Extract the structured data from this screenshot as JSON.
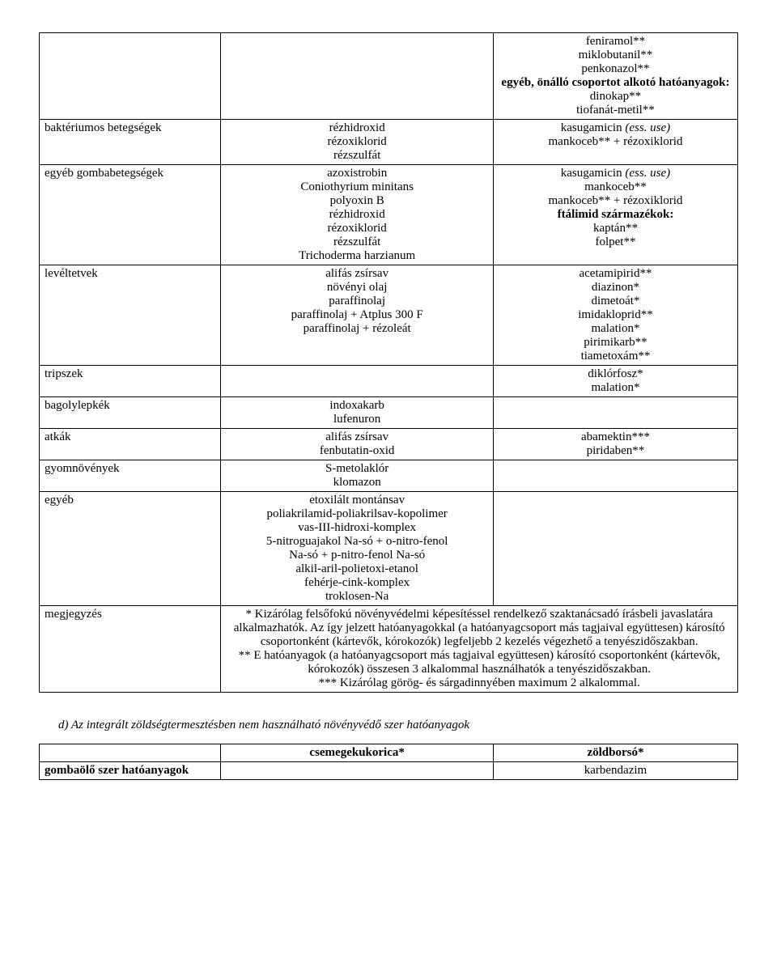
{
  "table1": {
    "rows": [
      {
        "col1": "",
        "col2": "",
        "col3": "feniramol**\nmiklobutanil**\npenkonazol**\n<b>egyéb, önálló csoportot alkotó hatóanyagok:</b>\ndinokap**\ntiofanát-metil**"
      },
      {
        "col1": "baktériumos betegségek",
        "col2": "rézhidroxid\nrézoxiklorid\nrézszulfát",
        "col3": "kasugamicin <i>(ess. use)</i>\nmankoceb** + rézoxiklorid"
      },
      {
        "col1": "egyéb gombabetegségek",
        "col2": "azoxistrobin\nConiothyrium minitans\npolyoxin B\nrézhidroxid\nrézoxiklorid\nrézszulfát\nTrichoderma harzianum",
        "col3": "kasugamicin <i>(ess. use)</i>\nmankoceb**\nmankoceb** + rézoxiklorid\n<b>ftálimid származékok:</b>\nkaptán**\nfolpet**"
      },
      {
        "col1": "levéltetvek",
        "col2": "alifás zsírsav\nnövényi olaj\nparaffinolaj\nparaffinolaj + Atplus 300 F\nparaffinolaj + rézoleát",
        "col3": "acetamipirid**\ndiazinon*\ndimetoát*\nimidakloprid**\nmalation*\npirimikarb**\ntiametoxám**"
      },
      {
        "col1": "tripszek",
        "col2": "",
        "col3": "diklórfosz*\nmalation*"
      },
      {
        "col1": "bagolylepkék",
        "col2": "indoxakarb\nlufenuron",
        "col3": ""
      },
      {
        "col1": "atkák",
        "col2": "alifás zsírsav\nfenbutatin-oxid",
        "col3": "abamektin***\npiridaben**"
      },
      {
        "col1": "gyomnövények",
        "col2": "S-metolaklór\nklomazon",
        "col3": ""
      },
      {
        "col1": "egyéb",
        "col2": "etoxilált montánsav\npoliakrilamid-poliakrilsav-kopolimer\nvas-III-hidroxi-komplex\n5-nitroguajakol Na-só + o-nitro-fenol\nNa-só + p-nitro-fenol Na-só\nalkil-aril-polietoxi-etanol\nfehérje-cink-komplex\ntroklosen-Na",
        "col3": ""
      },
      {
        "col1": "megjegyzés",
        "colspan23": "* Kizárólag felsőfokú növényvédelmi képesítéssel rendelkező szaktanácsadó írásbeli javaslatára alkalmazhatók. Az így jelzett hatóanyagokkal (a hatóanyagcsoport más tagjaival együttesen) károsító csoportonként (kártevők, kórokozók) legfeljebb 2 kezelés végezhető a tenyészidőszakban.\n** E hatóanyagok (a hatóanyagcsoport más tagjaival együttesen) károsító csoportonként (kártevők, kórokozók) összesen 3 alkalommal használhatók a tenyészidőszakban.\n*** Kizárólag görög- és sárgadinnyében maximum 2 alkalommal."
      }
    ]
  },
  "section_d": "d) Az integrált zöldségtermesztésben <i>nem</i> használható növényvédő szer hatóanyagok",
  "table2": {
    "rows": [
      {
        "col1": "",
        "col2": "<b>csemegekukorica*</b>",
        "col3": "<b>zöldborsó*</b>"
      },
      {
        "col1": "<b>gombaölő szer hatóanyagok</b>",
        "col2": "",
        "col3": "karbendazim"
      }
    ]
  },
  "col_widths": {
    "c1": "26%",
    "c2": "39%",
    "c3": "35%"
  }
}
